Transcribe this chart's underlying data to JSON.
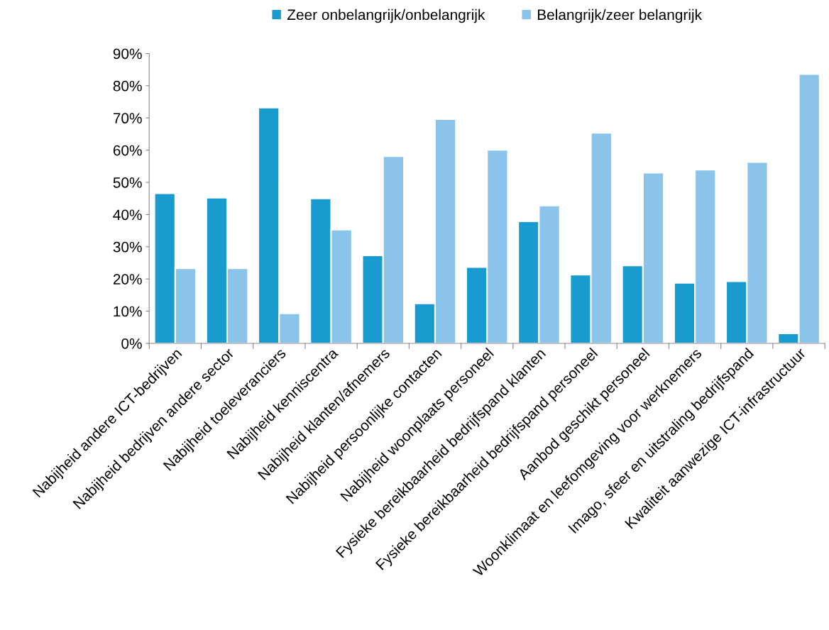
{
  "chart_data": {
    "type": "bar",
    "categories": [
      "Nabijheid andere ICT-bedrijven",
      "Nabijheid bedrijven andere sector",
      "Nabijheid toeleveranciers",
      "Nabijheid kenniscentra",
      "Nabijheid klanten/afnemers",
      "Nabijheid persoonlijke contacten",
      "Nabijheid woonplaats personeel",
      "Fysieke bereikbaarheid bedrijfspand klanten",
      "Fysieke bereikbaarheid bedrijfspand personeel",
      "Aanbod geschikt personeel",
      "Woonklimaat en leefomgeving voor werknemers",
      "Imago, sfeer en uitstraling bedrijfspand",
      "Kwaliteit aanwezige ICT-infrastructuur"
    ],
    "series": [
      {
        "name": "Zeer onbelangrijk/onbelangrijk",
        "color": "#1a9bcf",
        "values": [
          46.6,
          45.2,
          73.2,
          45.0,
          27.3,
          12.4,
          23.7,
          37.9,
          21.3,
          24.2,
          18.8,
          19.3,
          3.1
        ]
      },
      {
        "name": "Belangrijk/zeer belangrijk",
        "color": "#8ac4ea",
        "values": [
          23.3,
          23.3,
          9.3,
          35.3,
          58.1,
          69.6,
          60.1,
          42.8,
          65.4,
          53.0,
          53.9,
          56.3,
          83.6
        ]
      }
    ],
    "ylim": [
      0,
      90
    ],
    "yticks": [
      {
        "value": 0,
        "label": "0%"
      },
      {
        "value": 10,
        "label": "10%"
      },
      {
        "value": 20,
        "label": "20%"
      },
      {
        "value": 30,
        "label": "30%"
      },
      {
        "value": 40,
        "label": "40%"
      },
      {
        "value": 50,
        "label": "50%"
      },
      {
        "value": 60,
        "label": "60%"
      },
      {
        "value": 70,
        "label": "70%"
      },
      {
        "value": 80,
        "label": "80%"
      },
      {
        "value": 90,
        "label": "90%"
      }
    ],
    "grid": false,
    "legend": "top"
  }
}
